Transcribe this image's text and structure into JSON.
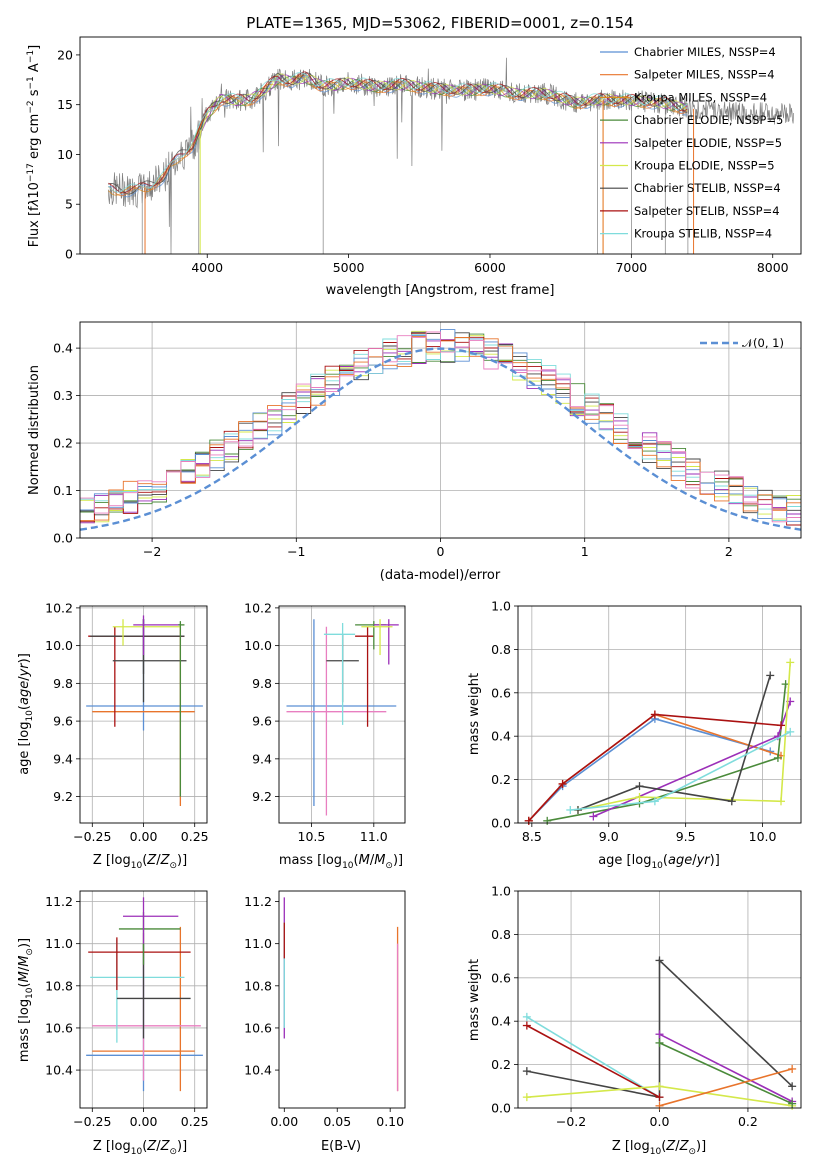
{
  "colors": {
    "Chabrier MILES": "#5b8fd4",
    "Salpeter MILES": "#e8742c",
    "Kroupa MILES": "#d98a1f",
    "Chabrier ELODIE": "#4a8a3a",
    "Salpeter ELODIE": "#9b2fb8",
    "Kroupa ELODIE": "#d4e84a",
    "Chabrier STELIB": "#444444",
    "Salpeter STELIB": "#aa1111",
    "Kroupa STELIB": "#7fdcdc",
    "pink": "#e87fc0",
    "normal": "#5b8fd4",
    "spectrum": "#808080"
  },
  "chart_data": [
    {
      "type": "line",
      "title": "PLATE=1365, MJD=53062, FIBERID=0001, z=0.154",
      "xlabel": "wavelength [Angstrom, rest frame]",
      "ylabel": "Flux [f_λ10^-17 erg cm^-2 s^-1 A^-1]",
      "xlim": [
        3100,
        8200
      ],
      "ylim": [
        0,
        21.8
      ],
      "xticks": [
        "4000",
        "5000",
        "6000",
        "7000",
        "8000"
      ],
      "yticks": [
        "0",
        "5",
        "10",
        "15",
        "20"
      ],
      "legend": [
        "Chabrier MILES, N_SSP=4",
        "Salpeter MILES, N_SSP=4",
        "Kroupa MILES, N_SSP=4",
        "Chabrier ELODIE, N_SSP=5",
        "Salpeter ELODIE, N_SSP=5",
        "Kroupa ELODIE, N_SSP=5",
        "Chabrier STELIB, N_SSP=4",
        "Salpeter STELIB, N_SSP=4",
        "Kroupa STELIB, N_SSP=4"
      ],
      "legend_position": "right",
      "spectrum": {
        "x": [
          3300,
          3400,
          3500,
          3600,
          3700,
          3800,
          3900,
          4000,
          4100,
          4200,
          4300,
          4400,
          4500,
          4600,
          4700,
          4800,
          4900,
          5000,
          5200,
          5400,
          5600,
          5800,
          6000,
          6200,
          6400,
          6600,
          6800,
          7000,
          7200,
          7400,
          7600,
          7800,
          8000
        ],
        "y": [
          6.5,
          6.5,
          6.3,
          7.0,
          7.8,
          9.8,
          11.0,
          14.0,
          15.6,
          15.4,
          15.5,
          16.4,
          17.6,
          17.4,
          17.7,
          17.0,
          16.9,
          17.2,
          16.8,
          17.0,
          16.6,
          16.4,
          16.6,
          16.1,
          16.1,
          15.2,
          15.5,
          15.4,
          15.2,
          14.6,
          14.5,
          14.2,
          14.1
        ]
      },
      "grid": false
    },
    {
      "type": "line",
      "xlabel": "(data-model)/error",
      "ylabel": "Normed distribution",
      "xlim": [
        -2.5,
        2.5
      ],
      "ylim": [
        0,
        0.455
      ],
      "xticks": [
        "−2",
        "−1",
        "0",
        "1",
        "2"
      ],
      "yticks": [
        "0.0",
        "0.1",
        "0.2",
        "0.3",
        "0.4"
      ],
      "legend": [
        "𝒩(0, 1)"
      ],
      "legend_position": "upper right",
      "grid": true
    },
    {
      "type": "scatter",
      "xlabel": "Z [log10(Z/Z⊙)]",
      "ylabel": "age  [log10(age/yr)]",
      "xlim": [
        -0.31,
        0.31
      ],
      "ylim": [
        9.06,
        10.21
      ],
      "xticks": [
        "−0.25",
        "0.00",
        "0.25"
      ],
      "yticks": [
        "9.2",
        "9.4",
        "9.6",
        "9.8",
        "10.0",
        "10.2"
      ],
      "grid": true
    },
    {
      "type": "scatter",
      "xlabel": "mass [log10(M/M⊙)]",
      "ylabel": "",
      "xlim": [
        10.24,
        11.25
      ],
      "ylim": [
        9.06,
        10.21
      ],
      "xticks": [
        "10.5",
        "11.0"
      ],
      "yticks": [
        "9.2",
        "9.4",
        "9.6",
        "9.8",
        "10.0",
        "10.2"
      ],
      "grid": true
    },
    {
      "type": "line",
      "xlabel": "age  [log10(age/yr)]",
      "ylabel": "mass weight",
      "xlim": [
        8.41,
        10.25
      ],
      "ylim": [
        0,
        1.0
      ],
      "xticks": [
        "8.5",
        "9.0",
        "9.5",
        "10.0"
      ],
      "yticks": [
        "0.0",
        "0.2",
        "0.4",
        "0.6",
        "0.8",
        "1.0"
      ],
      "grid": true,
      "series": [
        {
          "name": "Chabrier MILES",
          "x": [
            8.48,
            8.7,
            9.3,
            10.05
          ],
          "y": [
            0.01,
            0.17,
            0.48,
            0.33
          ]
        },
        {
          "name": "Salpeter MILES",
          "x": [
            8.48,
            8.7,
            9.3,
            10.12
          ],
          "y": [
            0.01,
            0.18,
            0.5,
            0.31
          ]
        },
        {
          "name": "Chabrier ELODIE",
          "x": [
            8.6,
            9.2,
            10.1,
            10.15
          ],
          "y": [
            0.01,
            0.09,
            0.3,
            0.64
          ]
        },
        {
          "name": "Salpeter ELODIE",
          "x": [
            8.9,
            10.1,
            10.18
          ],
          "y": [
            0.03,
            0.4,
            0.56
          ]
        },
        {
          "name": "Kroupa ELODIE",
          "x": [
            8.8,
            9.2,
            10.12,
            10.18
          ],
          "y": [
            0.06,
            0.12,
            0.1,
            0.74
          ]
        },
        {
          "name": "Chabrier STELIB",
          "x": [
            8.8,
            9.2,
            9.8,
            10.05
          ],
          "y": [
            0.06,
            0.17,
            0.1,
            0.68
          ]
        },
        {
          "name": "Salpeter STELIB",
          "x": [
            8.48,
            8.7,
            9.3,
            10.12
          ],
          "y": [
            0.01,
            0.18,
            0.5,
            0.45
          ]
        },
        {
          "name": "Kroupa STELIB",
          "x": [
            8.75,
            9.3,
            10.18
          ],
          "y": [
            0.06,
            0.1,
            0.42
          ]
        }
      ]
    },
    {
      "type": "scatter",
      "xlabel": "Z [log10(Z/Z⊙)]",
      "ylabel": "mass [log10(M/M⊙)]",
      "xlim": [
        -0.31,
        0.31
      ],
      "ylim": [
        10.22,
        11.25
      ],
      "xticks": [
        "−0.25",
        "0.00",
        "0.25"
      ],
      "yticks": [
        "10.4",
        "10.6",
        "10.8",
        "11.0",
        "11.2"
      ],
      "grid": true
    },
    {
      "type": "scatter",
      "xlabel": "E(B-V)",
      "ylabel": "",
      "xlim": [
        -0.005,
        0.114
      ],
      "ylim": [
        10.22,
        11.25
      ],
      "xticks": [
        "0.00",
        "0.05",
        "0.10"
      ],
      "yticks": [
        "10.4",
        "10.6",
        "10.8",
        "11.0",
        "11.2"
      ],
      "grid": false
    },
    {
      "type": "line",
      "xlabel": "Z [log10(Z/Z⊙)]",
      "ylabel": "mass weight",
      "xlim": [
        -0.32,
        0.32
      ],
      "ylim": [
        0,
        1.0
      ],
      "xticks": [
        "−0.2",
        "0.0",
        "0.2"
      ],
      "yticks": [
        "0.0",
        "0.2",
        "0.4",
        "0.6",
        "0.8",
        "1.0"
      ],
      "grid": true,
      "series": [
        {
          "name": "Chabrier STELIB",
          "x": [
            -0.3,
            0.0,
            0.0,
            0.3
          ],
          "y": [
            0.17,
            0.05,
            0.68,
            0.1
          ]
        },
        {
          "name": "Kroupa STELIB",
          "x": [
            -0.3,
            0.0
          ],
          "y": [
            0.42,
            0.05
          ]
        },
        {
          "name": "Salpeter STELIB",
          "x": [
            -0.3,
            0.0
          ],
          "y": [
            0.38,
            0.05
          ]
        },
        {
          "name": "Kroupa ELODIE",
          "x": [
            -0.3,
            0.0,
            0.3
          ],
          "y": [
            0.05,
            0.1,
            0.01
          ]
        },
        {
          "name": "Salpeter ELODIE",
          "x": [
            0.0,
            0.3
          ],
          "y": [
            0.34,
            0.03
          ]
        },
        {
          "name": "Chabrier ELODIE",
          "x": [
            0.0,
            0.3
          ],
          "y": [
            0.3,
            0.02
          ]
        },
        {
          "name": "Salpeter MILES",
          "x": [
            0.0,
            0.3
          ],
          "y": [
            0.01,
            0.18
          ]
        }
      ]
    }
  ]
}
